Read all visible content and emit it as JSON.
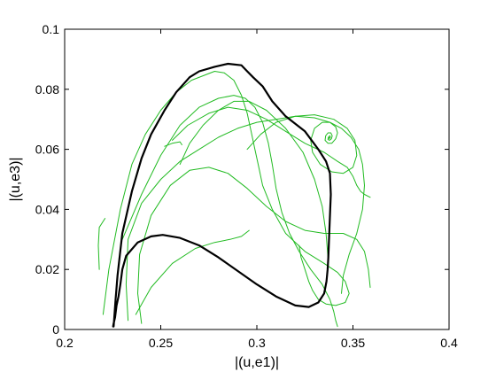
{
  "chart_data": {
    "type": "line",
    "xlabel": "|(u,e1)|",
    "ylabel": "|(u,e3)|",
    "xlim": [
      0.2,
      0.4
    ],
    "ylim": [
      0,
      0.1
    ],
    "xticks": [
      "0.2",
      "0.25",
      "0.3",
      "0.35",
      "0.4"
    ],
    "yticks": [
      "0",
      "0.02",
      "0.04",
      "0.06",
      "0.08",
      "0.1"
    ],
    "xtick_values": [
      0.2,
      0.25,
      0.3,
      0.35,
      0.4
    ],
    "ytick_values": [
      0,
      0.02,
      0.04,
      0.06,
      0.08,
      0.1
    ],
    "grid": false,
    "series": [
      {
        "color": "#000000",
        "x": [
          0.2255,
          0.2265,
          0.2275,
          0.23,
          0.235,
          0.24,
          0.245,
          0.252,
          0.258,
          0.265,
          0.27,
          0.278,
          0.285,
          0.292,
          0.295,
          0.298,
          0.303,
          0.308,
          0.315,
          0.325,
          0.332,
          0.336,
          0.338,
          0.3385,
          0.3378,
          0.3372,
          0.3368,
          0.3362,
          0.335,
          0.332,
          0.327,
          0.32,
          0.31,
          0.3,
          0.29,
          0.28,
          0.27,
          0.26,
          0.251,
          0.245,
          0.238,
          0.232,
          0.23,
          0.229,
          0.228,
          0.227,
          0.2262,
          0.2255,
          0.2252
        ],
        "y": [
          0.001,
          0.01,
          0.018,
          0.032,
          0.046,
          0.057,
          0.065,
          0.073,
          0.079,
          0.084,
          0.086,
          0.0875,
          0.0885,
          0.088,
          0.086,
          0.084,
          0.081,
          0.076,
          0.071,
          0.066,
          0.06,
          0.056,
          0.052,
          0.045,
          0.034,
          0.024,
          0.02,
          0.016,
          0.012,
          0.009,
          0.0075,
          0.008,
          0.011,
          0.015,
          0.0195,
          0.024,
          0.028,
          0.0305,
          0.0315,
          0.031,
          0.029,
          0.0245,
          0.02,
          0.015,
          0.011,
          0.008,
          0.004,
          0.002,
          0.001
        ]
      },
      {
        "color": "#22bb22",
        "x": [
          0.22,
          0.223,
          0.229,
          0.235,
          0.242,
          0.25,
          0.258,
          0.266,
          0.274,
          0.278,
          0.283,
          0.288,
          0.292,
          0.295,
          0.297,
          0.299,
          0.301,
          0.303,
          0.308,
          0.315,
          0.325,
          0.335,
          0.342,
          0.346,
          0.348,
          0.346,
          0.341,
          0.336,
          0.332,
          0.329,
          0.327,
          0.325,
          0.323,
          0.322
        ],
        "y": [
          0.005,
          0.02,
          0.04,
          0.055,
          0.065,
          0.073,
          0.079,
          0.083,
          0.085,
          0.086,
          0.0855,
          0.083,
          0.078,
          0.072,
          0.066,
          0.06,
          0.054,
          0.048,
          0.04,
          0.032,
          0.026,
          0.022,
          0.019,
          0.016,
          0.012,
          0.009,
          0.008,
          0.0085,
          0.01,
          0.013,
          0.016,
          0.02,
          0.024,
          0.028
        ]
      },
      {
        "color": "#22bb22",
        "x": [
          0.233,
          0.232,
          0.233,
          0.24,
          0.25,
          0.26,
          0.27,
          0.28,
          0.29,
          0.3,
          0.31,
          0.32,
          0.33,
          0.338,
          0.344,
          0.349,
          0.353,
          0.355,
          0.356,
          0.355,
          0.352,
          0.348,
          0.345,
          0.344
        ],
        "y": [
          0.003,
          0.015,
          0.03,
          0.042,
          0.05,
          0.056,
          0.06,
          0.064,
          0.067,
          0.069,
          0.07,
          0.071,
          0.0705,
          0.069,
          0.067,
          0.064,
          0.06,
          0.055,
          0.048,
          0.04,
          0.032,
          0.025,
          0.018,
          0.012
        ]
      },
      {
        "color": "#22bb22",
        "x": [
          0.24,
          0.238,
          0.239,
          0.245,
          0.255,
          0.265,
          0.275,
          0.285,
          0.295,
          0.305,
          0.315,
          0.325,
          0.335,
          0.345,
          0.352,
          0.356,
          0.358,
          0.359
        ],
        "y": [
          0.002,
          0.012,
          0.025,
          0.038,
          0.048,
          0.053,
          0.054,
          0.052,
          0.047,
          0.041,
          0.036,
          0.033,
          0.032,
          0.032,
          0.03,
          0.026,
          0.02,
          0.014
        ]
      },
      {
        "color": "#22bb22",
        "x": [
          0.295,
          0.302,
          0.31,
          0.32,
          0.33,
          0.34,
          0.347,
          0.351,
          0.352,
          0.35,
          0.345,
          0.339,
          0.333,
          0.329,
          0.328,
          0.33,
          0.334,
          0.338,
          0.341,
          0.342,
          0.341,
          0.339,
          0.337,
          0.3355,
          0.3358,
          0.337,
          0.3385,
          0.3392,
          0.3388,
          0.3378,
          0.337,
          0.3372,
          0.338,
          0.3383,
          0.3378,
          0.3375,
          0.3377
        ],
        "y": [
          0.06,
          0.065,
          0.069,
          0.071,
          0.0715,
          0.07,
          0.067,
          0.063,
          0.058,
          0.054,
          0.052,
          0.0525,
          0.055,
          0.059,
          0.063,
          0.067,
          0.069,
          0.069,
          0.0675,
          0.0655,
          0.0635,
          0.062,
          0.062,
          0.063,
          0.0645,
          0.0655,
          0.0655,
          0.0645,
          0.0635,
          0.063,
          0.0633,
          0.064,
          0.0645,
          0.064,
          0.0636,
          0.0637,
          0.0639
        ]
      },
      {
        "color": "#22bb22",
        "x": [
          0.256,
          0.264,
          0.275,
          0.285,
          0.295,
          0.305,
          0.315,
          0.325,
          0.335,
          0.342,
          0.347,
          0.35,
          0.352,
          0.354,
          0.356,
          0.359
        ],
        "y": [
          0.063,
          0.068,
          0.072,
          0.074,
          0.073,
          0.07,
          0.066,
          0.062,
          0.059,
          0.056,
          0.054,
          0.051,
          0.048,
          0.046,
          0.045,
          0.044
        ]
      },
      {
        "color": "#22bb22",
        "x": [
          0.23,
          0.24,
          0.25,
          0.26,
          0.27,
          0.28,
          0.288,
          0.294,
          0.299,
          0.303,
          0.306,
          0.308,
          0.31,
          0.313,
          0.317,
          0.322,
          0.328,
          0.334,
          0.338,
          0.34,
          0.341,
          0.342
        ],
        "y": [
          0.03,
          0.045,
          0.058,
          0.068,
          0.074,
          0.077,
          0.078,
          0.077,
          0.074,
          0.069,
          0.062,
          0.055,
          0.047,
          0.039,
          0.032,
          0.026,
          0.02,
          0.015,
          0.01,
          0.006,
          0.003,
          0.001
        ]
      },
      {
        "color": "#22bb22",
        "x": [
          0.26,
          0.265,
          0.272,
          0.28,
          0.288,
          0.296,
          0.305,
          0.315,
          0.324,
          0.33,
          0.334,
          0.336,
          0.337
        ],
        "y": [
          0.055,
          0.062,
          0.068,
          0.073,
          0.076,
          0.076,
          0.073,
          0.067,
          0.059,
          0.05,
          0.041,
          0.032,
          0.024
        ]
      },
      {
        "color": "#22bb22",
        "x": [
          0.237,
          0.245,
          0.256,
          0.268,
          0.278,
          0.286,
          0.292,
          0.296
        ],
        "y": [
          0.005,
          0.014,
          0.022,
          0.027,
          0.029,
          0.03,
          0.031,
          0.033
        ]
      },
      {
        "color": "#22bb22",
        "x": [
          0.218,
          0.2175,
          0.218,
          0.22,
          0.221
        ],
        "y": [
          0.02,
          0.028,
          0.034,
          0.036,
          0.037
        ]
      },
      {
        "color": "#22bb22",
        "x": [
          0.252,
          0.256,
          0.26,
          0.261
        ],
        "y": [
          0.061,
          0.062,
          0.0625,
          0.0615
        ]
      }
    ]
  }
}
